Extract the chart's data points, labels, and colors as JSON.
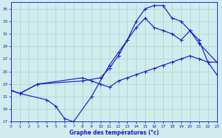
{
  "title": "Graphe des températures (°c)",
  "background_color": "#d0ecec",
  "line_color": "#1a1acc",
  "grid_color": "#b0d4d4",
  "ylim": [
    17,
    36
  ],
  "xlim": [
    0,
    23
  ],
  "yticks": [
    17,
    19,
    21,
    23,
    25,
    27,
    29,
    31,
    33,
    35
  ],
  "xticks": [
    0,
    1,
    2,
    3,
    4,
    5,
    6,
    7,
    8,
    9,
    10,
    11,
    12,
    13,
    14,
    15,
    16,
    17,
    18,
    19,
    20,
    21,
    22,
    23
  ],
  "line_peak_x": [
    0,
    1,
    4,
    5,
    6,
    7,
    9,
    11,
    12,
    13,
    14,
    15,
    16,
    17,
    18,
    19,
    20,
    21,
    22,
    23
  ],
  "line_peak_y": [
    22,
    21.5,
    20.5,
    19.5,
    17.5,
    17.0,
    21.0,
    26.0,
    28.0,
    30.0,
    33.0,
    35.0,
    35.5,
    35.5,
    33.5,
    33.0,
    31.5,
    30.0,
    26.5,
    26.5
  ],
  "line_mid_x": [
    0,
    1,
    3,
    8,
    10,
    11,
    12,
    13,
    14,
    15,
    16,
    17,
    18,
    19,
    20,
    21,
    23
  ],
  "line_mid_y": [
    22,
    21.5,
    23.0,
    23.5,
    24.0,
    25.5,
    27.5,
    30.0,
    32.0,
    33.5,
    32.0,
    31.5,
    31.0,
    30.0,
    31.5,
    29.5,
    26.5
  ],
  "line_flat_x": [
    0,
    1,
    3,
    8,
    9,
    10,
    11,
    12,
    13,
    14,
    15,
    16,
    17,
    18,
    19,
    20,
    21,
    22,
    23
  ],
  "line_flat_y": [
    22,
    21.5,
    23.0,
    24.0,
    23.5,
    23.0,
    22.5,
    23.5,
    24.0,
    24.5,
    25.0,
    25.5,
    26.0,
    26.5,
    27.0,
    27.5,
    27.0,
    26.5,
    24.5
  ]
}
